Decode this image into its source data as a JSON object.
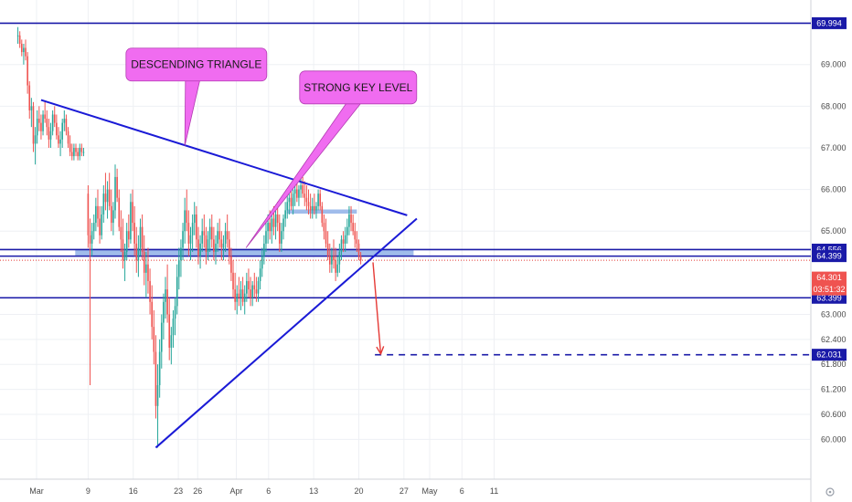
{
  "chart_data": {
    "type": "candlestick",
    "colors": {
      "up": "#26a69a",
      "down": "#ef5350",
      "level_line": "#1a1aa8",
      "trend_line": "#1a1ad6",
      "zone_fill": "#8fb0e8",
      "callout_fill": "#f06cf0",
      "arrow": "#e53935",
      "current_price_badge": "#ef5350",
      "level_badge": "#1a1aa8",
      "grid": "#eef0f4"
    },
    "y_axis": {
      "min": 59.7,
      "max": 70.2,
      "ticks": [
        "69.000",
        "68.000",
        "67.000",
        "66.000",
        "65.000",
        "63.000",
        "62.400",
        "61.800",
        "61.200",
        "60.600",
        "60.000"
      ]
    },
    "x_axis": {
      "min_day": 0,
      "max_day": 73,
      "ticks": [
        {
          "label": "Mar",
          "day": 0
        },
        {
          "label": "9",
          "day": 8
        },
        {
          "label": "16",
          "day": 15
        },
        {
          "label": "23",
          "day": 22
        },
        {
          "label": "26",
          "day": 25
        },
        {
          "label": "Apr",
          "day": 31
        },
        {
          "label": "6",
          "day": 36
        },
        {
          "label": "13",
          "day": 43
        },
        {
          "label": "20",
          "day": 50
        },
        {
          "label": "27",
          "day": 57
        },
        {
          "label": "May",
          "day": 61
        },
        {
          "label": "6",
          "day": 66
        },
        {
          "label": "11",
          "day": 71
        }
      ]
    },
    "candles": [
      [
        -2.9,
        69.7,
        69.9,
        69.5,
        69.7
      ],
      [
        -2.6,
        69.7,
        69.8,
        69.4,
        69.5
      ],
      [
        -2.3,
        69.5,
        69.6,
        69.2,
        69.3
      ],
      [
        -2.0,
        69.3,
        69.5,
        69.0,
        69.4
      ],
      [
        -1.7,
        69.4,
        69.6,
        69.1,
        69.2
      ],
      [
        -1.4,
        69.2,
        69.3,
        68.3,
        68.5
      ],
      [
        -1.1,
        68.5,
        68.6,
        67.7,
        67.9
      ],
      [
        -0.8,
        67.9,
        68.2,
        67.5,
        68.0
      ],
      [
        -0.5,
        68.0,
        68.1,
        66.9,
        67.1
      ],
      [
        -0.2,
        67.1,
        67.5,
        66.6,
        67.3
      ],
      [
        0.1,
        67.3,
        67.9,
        67.1,
        67.7
      ],
      [
        0.4,
        67.7,
        68.0,
        67.4,
        67.6
      ],
      [
        0.7,
        67.6,
        67.8,
        67.2,
        67.4
      ],
      [
        1.0,
        67.4,
        67.9,
        67.3,
        67.8
      ],
      [
        1.3,
        67.8,
        68.1,
        67.6,
        67.7
      ],
      [
        1.6,
        67.7,
        67.9,
        67.3,
        67.5
      ],
      [
        1.9,
        67.5,
        67.7,
        67.0,
        67.2
      ],
      [
        2.2,
        67.2,
        67.6,
        67.0,
        67.4
      ],
      [
        2.5,
        67.4,
        67.9,
        67.3,
        67.8
      ],
      [
        2.8,
        67.8,
        68.0,
        67.5,
        67.6
      ],
      [
        3.1,
        67.6,
        67.8,
        67.2,
        67.3
      ],
      [
        3.4,
        67.3,
        67.5,
        67.0,
        67.1
      ],
      [
        3.7,
        67.1,
        67.4,
        66.8,
        67.2
      ],
      [
        4.0,
        67.2,
        67.7,
        67.0,
        67.6
      ],
      [
        4.3,
        67.6,
        67.9,
        67.4,
        67.7
      ],
      [
        4.6,
        67.7,
        67.8,
        67.3,
        67.4
      ],
      [
        4.9,
        67.4,
        67.5,
        67.0,
        67.1
      ],
      [
        5.2,
        67.1,
        67.3,
        66.8,
        66.9
      ],
      [
        5.5,
        66.9,
        67.1,
        66.7,
        66.8
      ],
      [
        5.8,
        66.8,
        67.1,
        66.7,
        67.0
      ],
      [
        6.1,
        67.0,
        67.1,
        66.8,
        66.9
      ],
      [
        6.4,
        66.9,
        67.0,
        66.7,
        66.8
      ],
      [
        6.7,
        66.8,
        67.1,
        66.7,
        67.0
      ],
      [
        7.0,
        67.0,
        67.1,
        66.8,
        66.9
      ],
      [
        7.3,
        66.9,
        67.0,
        66.8,
        66.9
      ],
      [
        8.0,
        65.9,
        66.1,
        64.6,
        64.9
      ],
      [
        8.3,
        64.9,
        65.3,
        61.3,
        64.7
      ],
      [
        8.6,
        64.7,
        65.2,
        64.4,
        65.0
      ],
      [
        8.9,
        65.0,
        65.4,
        64.8,
        65.2
      ],
      [
        9.2,
        65.2,
        65.8,
        65.0,
        65.6
      ],
      [
        9.5,
        65.6,
        66.0,
        65.1,
        65.3
      ],
      [
        9.8,
        65.3,
        65.6,
        64.7,
        64.9
      ],
      [
        10.1,
        64.9,
        65.6,
        64.8,
        65.4
      ],
      [
        10.4,
        65.4,
        66.1,
        65.2,
        65.9
      ],
      [
        10.7,
        65.9,
        66.4,
        65.5,
        65.7
      ],
      [
        11.0,
        65.7,
        66.2,
        65.3,
        66.0
      ],
      [
        11.3,
        66.0,
        66.4,
        65.5,
        65.6
      ],
      [
        11.6,
        65.6,
        66.0,
        65.0,
        65.2
      ],
      [
        11.9,
        65.2,
        65.7,
        64.9,
        65.5
      ],
      [
        12.2,
        65.5,
        66.6,
        65.3,
        66.3
      ],
      [
        12.5,
        66.3,
        66.5,
        65.7,
        65.8
      ],
      [
        12.8,
        65.8,
        66.0,
        65.0,
        65.1
      ],
      [
        13.1,
        65.1,
        65.5,
        64.5,
        64.8
      ],
      [
        13.4,
        64.8,
        65.3,
        64.1,
        64.3
      ],
      [
        13.7,
        64.3,
        64.7,
        63.8,
        64.5
      ],
      [
        14.0,
        64.5,
        65.2,
        64.3,
        65.0
      ],
      [
        14.3,
        65.0,
        65.4,
        64.6,
        64.8
      ],
      [
        14.6,
        64.8,
        65.9,
        64.7,
        65.7
      ],
      [
        14.9,
        65.7,
        66.0,
        65.0,
        65.2
      ],
      [
        15.2,
        65.2,
        65.6,
        64.4,
        64.7
      ],
      [
        15.5,
        64.7,
        65.1,
        64.0,
        64.3
      ],
      [
        15.8,
        64.3,
        64.9,
        63.9,
        64.6
      ],
      [
        16.1,
        64.6,
        65.3,
        64.4,
        65.1
      ],
      [
        16.4,
        65.1,
        65.4,
        64.3,
        64.5
      ],
      [
        16.7,
        64.5,
        64.9,
        63.7,
        64.0
      ],
      [
        17.0,
        64.0,
        64.5,
        63.4,
        64.2
      ],
      [
        17.3,
        64.2,
        64.6,
        63.5,
        63.8
      ],
      [
        17.6,
        63.8,
        64.1,
        63.0,
        63.3
      ],
      [
        17.9,
        63.3,
        63.7,
        62.4,
        62.7
      ],
      [
        18.2,
        62.7,
        63.1,
        61.8,
        62.1
      ],
      [
        18.5,
        62.1,
        62.5,
        60.5,
        60.8
      ],
      [
        18.8,
        60.8,
        61.8,
        59.8,
        61.3
      ],
      [
        19.1,
        61.3,
        62.4,
        61.0,
        62.1
      ],
      [
        19.4,
        62.1,
        63.0,
        61.7,
        62.8
      ],
      [
        19.7,
        62.8,
        63.5,
        62.4,
        63.3
      ],
      [
        20.0,
        63.3,
        63.9,
        62.9,
        63.6
      ],
      [
        20.3,
        63.6,
        64.2,
        62.8,
        63.0
      ],
      [
        20.6,
        63.0,
        63.4,
        61.9,
        62.2
      ],
      [
        20.9,
        62.2,
        62.7,
        61.8,
        62.5
      ],
      [
        21.2,
        62.5,
        63.1,
        62.2,
        62.9
      ],
      [
        21.5,
        62.9,
        63.4,
        62.5,
        63.2
      ],
      [
        21.8,
        63.2,
        64.2,
        63.0,
        63.9
      ],
      [
        22.1,
        63.9,
        64.6,
        63.6,
        64.3
      ],
      [
        22.4,
        64.3,
        64.8,
        63.9,
        64.6
      ],
      [
        22.7,
        64.6,
        65.2,
        64.3,
        65.0
      ],
      [
        23.0,
        65.0,
        65.8,
        64.7,
        65.5
      ],
      [
        23.3,
        65.5,
        66.0,
        65.0,
        65.2
      ],
      [
        23.6,
        65.2,
        65.5,
        64.4,
        64.7
      ],
      [
        23.9,
        64.7,
        65.1,
        64.3,
        64.9
      ],
      [
        24.2,
        64.9,
        65.4,
        64.5,
        65.2
      ],
      [
        24.5,
        65.2,
        65.7,
        64.9,
        65.4
      ],
      [
        24.8,
        65.4,
        65.6,
        64.6,
        64.8
      ],
      [
        25.1,
        64.8,
        65.1,
        64.2,
        64.4
      ],
      [
        25.4,
        64.4,
        64.9,
        64.1,
        64.7
      ],
      [
        25.7,
        64.7,
        65.3,
        64.5,
        65.0
      ],
      [
        26.0,
        65.0,
        65.4,
        64.6,
        64.9
      ],
      [
        26.3,
        64.9,
        65.1,
        64.2,
        64.5
      ],
      [
        26.6,
        64.5,
        65.0,
        64.3,
        64.8
      ],
      [
        26.9,
        64.8,
        65.3,
        64.5,
        65.1
      ],
      [
        27.2,
        65.1,
        65.4,
        64.6,
        64.8
      ],
      [
        27.5,
        64.8,
        65.1,
        64.3,
        64.5
      ],
      [
        27.8,
        64.5,
        64.9,
        64.2,
        64.7
      ],
      [
        28.1,
        64.7,
        65.2,
        64.5,
        65.0
      ],
      [
        28.4,
        65.0,
        65.3,
        64.6,
        64.8
      ],
      [
        28.7,
        64.8,
        65.0,
        64.3,
        64.6
      ],
      [
        29.0,
        64.6,
        64.9,
        64.3,
        64.7
      ],
      [
        29.3,
        64.7,
        65.2,
        64.5,
        65.0
      ],
      [
        29.6,
        65.0,
        65.4,
        64.6,
        64.8
      ],
      [
        29.9,
        64.8,
        65.0,
        64.2,
        64.4
      ],
      [
        30.2,
        64.4,
        64.6,
        63.8,
        64.0
      ],
      [
        30.5,
        64.0,
        64.3,
        63.4,
        63.6
      ],
      [
        30.8,
        63.6,
        64.0,
        63.1,
        63.3
      ],
      [
        31.1,
        63.3,
        63.7,
        63.0,
        63.5
      ],
      [
        31.4,
        63.5,
        63.9,
        63.2,
        63.4
      ],
      [
        31.7,
        63.4,
        63.8,
        63.1,
        63.6
      ],
      [
        32.0,
        63.6,
        63.9,
        63.2,
        63.3
      ],
      [
        32.3,
        63.3,
        63.7,
        63.0,
        63.5
      ],
      [
        32.6,
        63.5,
        64.0,
        63.3,
        63.8
      ],
      [
        32.9,
        63.8,
        64.1,
        63.4,
        63.6
      ],
      [
        33.2,
        63.6,
        63.9,
        63.2,
        63.4
      ],
      [
        33.5,
        63.4,
        63.8,
        63.2,
        63.7
      ],
      [
        33.8,
        63.7,
        64.0,
        63.4,
        63.6
      ],
      [
        34.1,
        63.6,
        63.9,
        63.3,
        63.5
      ],
      [
        34.4,
        63.5,
        63.9,
        63.3,
        63.8
      ],
      [
        34.7,
        63.8,
        64.3,
        63.6,
        64.1
      ],
      [
        35.0,
        64.1,
        64.6,
        63.9,
        64.4
      ],
      [
        35.3,
        64.4,
        64.9,
        64.2,
        64.7
      ],
      [
        35.6,
        64.7,
        65.2,
        64.5,
        65.0
      ],
      [
        35.9,
        65.0,
        65.4,
        64.7,
        65.2
      ],
      [
        36.2,
        65.2,
        65.5,
        64.8,
        65.0
      ],
      [
        36.5,
        65.0,
        65.4,
        64.7,
        65.3
      ],
      [
        36.8,
        65.3,
        65.6,
        64.9,
        65.1
      ],
      [
        37.1,
        65.1,
        65.5,
        64.8,
        65.4
      ],
      [
        37.4,
        65.4,
        65.7,
        65.0,
        65.2
      ],
      [
        37.7,
        65.2,
        65.4,
        64.5,
        64.7
      ],
      [
        38.0,
        64.7,
        65.2,
        64.5,
        65.0
      ],
      [
        38.3,
        65.0,
        65.4,
        64.8,
        65.3
      ],
      [
        38.6,
        65.3,
        65.7,
        65.1,
        65.5
      ],
      [
        38.9,
        65.5,
        65.9,
        65.3,
        65.7
      ],
      [
        39.2,
        65.7,
        66.0,
        65.4,
        65.8
      ],
      [
        39.5,
        65.8,
        66.1,
        65.5,
        65.6
      ],
      [
        39.8,
        65.6,
        66.0,
        65.4,
        65.9
      ],
      [
        40.1,
        65.9,
        66.2,
        65.6,
        66.0
      ],
      [
        40.4,
        66.0,
        66.3,
        65.7,
        65.8
      ],
      [
        40.7,
        65.8,
        66.1,
        65.6,
        66.0
      ],
      [
        41.0,
        66.0,
        66.3,
        65.8,
        66.1
      ],
      [
        41.3,
        66.1,
        66.3,
        65.8,
        65.9
      ],
      [
        41.6,
        65.9,
        66.2,
        65.6,
        65.8
      ],
      [
        41.9,
        65.8,
        66.1,
        65.5,
        65.7
      ],
      [
        42.2,
        65.7,
        66.0,
        65.4,
        65.6
      ],
      [
        42.5,
        65.6,
        65.9,
        65.3,
        65.5
      ],
      [
        42.8,
        65.5,
        65.8,
        65.3,
        65.6
      ],
      [
        43.1,
        65.6,
        65.9,
        65.4,
        65.5
      ],
      [
        43.4,
        65.5,
        65.7,
        65.3,
        65.6
      ],
      [
        43.7,
        65.6,
        66.0,
        65.5,
        65.9
      ],
      [
        44.0,
        65.9,
        66.0,
        65.5,
        65.6
      ],
      [
        44.3,
        65.6,
        65.7,
        65.1,
        65.2
      ],
      [
        44.6,
        65.2,
        65.4,
        64.8,
        65.0
      ],
      [
        44.9,
        65.0,
        65.3,
        64.6,
        64.7
      ],
      [
        45.2,
        64.7,
        65.0,
        64.3,
        64.4
      ],
      [
        45.5,
        64.4,
        64.7,
        64.0,
        64.2
      ],
      [
        45.8,
        64.2,
        64.6,
        64.0,
        64.4
      ],
      [
        46.1,
        64.4,
        64.8,
        64.1,
        64.3
      ],
      [
        46.4,
        64.3,
        64.6,
        63.8,
        64.0
      ],
      [
        46.7,
        64.0,
        64.4,
        63.9,
        64.2
      ],
      [
        47.0,
        64.2,
        64.7,
        64.0,
        64.5
      ],
      [
        47.3,
        64.5,
        64.9,
        64.3,
        64.8
      ],
      [
        47.6,
        64.8,
        65.0,
        64.5,
        64.7
      ],
      [
        47.9,
        64.7,
        65.1,
        64.5,
        64.9
      ],
      [
        48.2,
        64.9,
        65.3,
        64.7,
        65.1
      ],
      [
        48.5,
        65.1,
        65.6,
        64.9,
        65.4
      ],
      [
        48.8,
        65.4,
        65.6,
        65.0,
        65.2
      ],
      [
        49.1,
        65.2,
        65.4,
        64.9,
        65.0
      ],
      [
        49.4,
        65.0,
        65.2,
        64.6,
        64.8
      ],
      [
        49.7,
        64.8,
        65.0,
        64.5,
        64.7
      ],
      [
        50.0,
        64.7,
        64.8,
        64.3,
        64.4
      ],
      [
        50.3,
        64.4,
        64.5,
        64.2,
        64.3
      ]
    ],
    "horizontal_levels": [
      {
        "y": 69.994,
        "label": "69.994"
      },
      {
        "y": 64.556,
        "label": "64.556"
      },
      {
        "y": 64.399,
        "label": "64.399"
      },
      {
        "y": 63.399,
        "label": "63.399"
      }
    ],
    "target_level": {
      "y": 62.031,
      "label": "62.031",
      "from_day": 52.5
    },
    "current_price": {
      "y": 64.301,
      "label": "64.301",
      "timer": "03:51:32"
    },
    "dotted_price_line_y": 64.301,
    "support_zone": {
      "y_top": 64.556,
      "y_bottom": 64.399,
      "from_day": 6,
      "to_day": 58.5
    },
    "resistance_zone": {
      "y_top": 65.52,
      "y_bottom": 65.42,
      "from_day": 38.8,
      "to_day": 49.7
    },
    "descending_trendline": {
      "start": [
        0.7,
        68.15
      ],
      "end": [
        57.5,
        65.38
      ]
    },
    "ascending_trendline": {
      "start": [
        18.5,
        59.8
      ],
      "end": [
        59.0,
        65.3
      ]
    },
    "callouts": [
      {
        "text": "DESCENDING  TRIANGLE",
        "box_day": 24.8,
        "box_y": 69.0,
        "tip_day": 23.0,
        "tip_y": 67.05
      },
      {
        "text": "STRONG   KEY LEVEL",
        "box_day": 49.9,
        "box_y": 68.45,
        "tip_day": 32.5,
        "tip_y": 64.6
      }
    ],
    "forecast_arrow": {
      "start": [
        52.2,
        64.25
      ],
      "end": [
        53.4,
        62.05
      ]
    }
  }
}
